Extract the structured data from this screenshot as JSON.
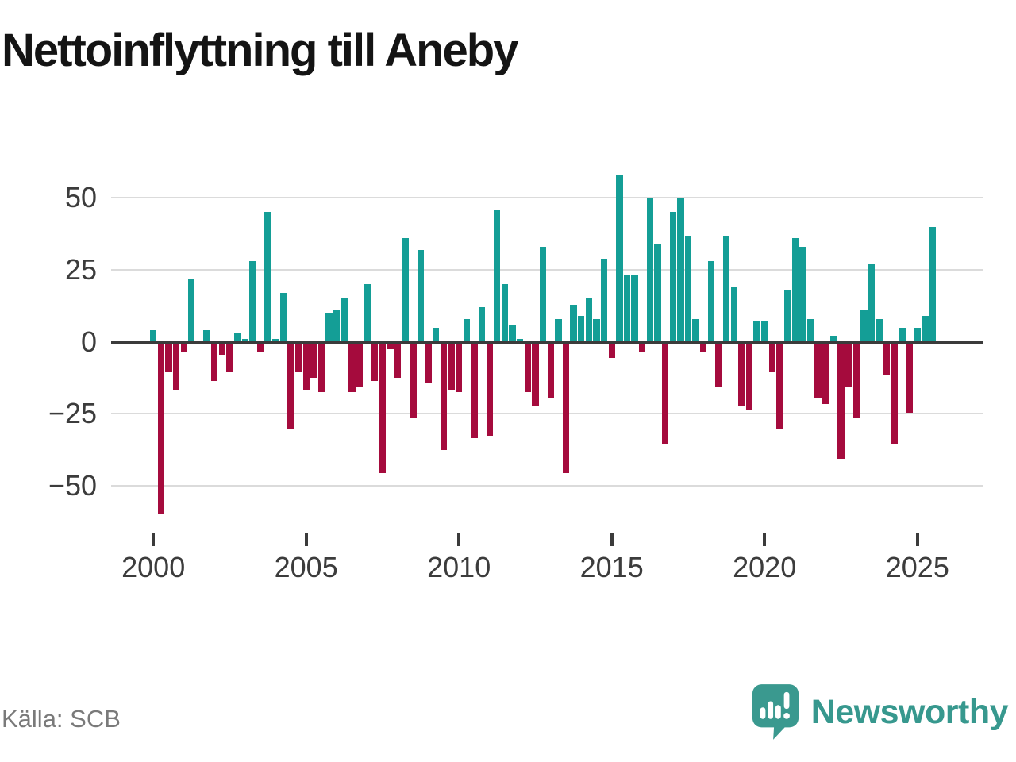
{
  "title": "Nettoinflyttning till Aneby",
  "source": "Källa: SCB",
  "brand": {
    "name": "Newsworthy"
  },
  "colors": {
    "positive": "#149e96",
    "negative": "#a50b3d",
    "grid": "#dbdbdb",
    "axis": "#3b3b3b",
    "brand_teal": "#37988e",
    "title_text": "#141414",
    "source_text": "#7a7a7a"
  },
  "chart_data": {
    "type": "bar",
    "title": "Nettoinflyttning till Aneby",
    "xlabel": "",
    "ylabel": "",
    "grid": "horizontal",
    "legend": "none",
    "ylim": [
      -62,
      62
    ],
    "y_ticks": [
      {
        "v": 50,
        "label": "50"
      },
      {
        "v": 25,
        "label": "25"
      },
      {
        "v": 0,
        "label": "0"
      },
      {
        "v": -25,
        "label": "−25"
      },
      {
        "v": -50,
        "label": "−50"
      }
    ],
    "x_ticks": [
      {
        "label": "2000",
        "quarter_index": 0
      },
      {
        "label": "2005",
        "quarter_index": 20
      },
      {
        "label": "2010",
        "quarter_index": 40
      },
      {
        "label": "2015",
        "quarter_index": 60
      },
      {
        "label": "2020",
        "quarter_index": 80
      },
      {
        "label": "2025",
        "quarter_index": 100
      }
    ],
    "categories": [
      "2000-Q1",
      "2000-Q2",
      "2000-Q3",
      "2000-Q4",
      "2001-Q1",
      "2001-Q2",
      "2001-Q3",
      "2001-Q4",
      "2002-Q1",
      "2002-Q2",
      "2002-Q3",
      "2002-Q4",
      "2003-Q1",
      "2003-Q2",
      "2003-Q3",
      "2003-Q4",
      "2004-Q1",
      "2004-Q2",
      "2004-Q3",
      "2004-Q4",
      "2005-Q1",
      "2005-Q2",
      "2005-Q3",
      "2005-Q4",
      "2006-Q1",
      "2006-Q2",
      "2006-Q3",
      "2006-Q4",
      "2007-Q1",
      "2007-Q2",
      "2007-Q3",
      "2007-Q4",
      "2008-Q1",
      "2008-Q2",
      "2008-Q3",
      "2008-Q4",
      "2009-Q1",
      "2009-Q2",
      "2009-Q3",
      "2009-Q4",
      "2010-Q1",
      "2010-Q2",
      "2010-Q3",
      "2010-Q4",
      "2011-Q1",
      "2011-Q2",
      "2011-Q3",
      "2011-Q4",
      "2012-Q1",
      "2012-Q2",
      "2012-Q3",
      "2012-Q4",
      "2013-Q1",
      "2013-Q2",
      "2013-Q3",
      "2013-Q4",
      "2014-Q1",
      "2014-Q2",
      "2014-Q3",
      "2014-Q4",
      "2015-Q1",
      "2015-Q2",
      "2015-Q3",
      "2015-Q4",
      "2016-Q1",
      "2016-Q2",
      "2016-Q3",
      "2016-Q4",
      "2017-Q1",
      "2017-Q2",
      "2017-Q3",
      "2017-Q4",
      "2018-Q1",
      "2018-Q2",
      "2018-Q3",
      "2018-Q4",
      "2019-Q1",
      "2019-Q2",
      "2019-Q3",
      "2019-Q4",
      "2020-Q1",
      "2020-Q2",
      "2020-Q3",
      "2020-Q4",
      "2021-Q1",
      "2021-Q2",
      "2021-Q3",
      "2021-Q4",
      "2022-Q1",
      "2022-Q2",
      "2022-Q3",
      "2022-Q4",
      "2023-Q1",
      "2023-Q2",
      "2023-Q3",
      "2023-Q4",
      "2024-Q1",
      "2024-Q2",
      "2024-Q3",
      "2024-Q4",
      "2025-Q1",
      "2025-Q2",
      "2025-Q3"
    ],
    "values": [
      4,
      -59,
      -10,
      -16,
      -3,
      22,
      0,
      4,
      -13,
      -4,
      -10,
      3,
      1,
      28,
      -3,
      45,
      1,
      17,
      -30,
      -10,
      -16,
      -12,
      -17,
      10,
      11,
      15,
      -17,
      -15,
      20,
      -13,
      -45,
      -2,
      -12,
      36,
      -26,
      32,
      -14,
      5,
      -37,
      -16,
      -17,
      8,
      -33,
      12,
      -32,
      46,
      20,
      6,
      1,
      -17,
      -22,
      33,
      -19,
      8,
      -45,
      13,
      9,
      15,
      8,
      29,
      -5,
      58,
      23,
      23,
      -3,
      50,
      34,
      -35,
      45,
      50,
      37,
      8,
      -3,
      28,
      -15,
      37,
      19,
      -22,
      -23,
      7,
      7,
      -10,
      -30,
      18,
      36,
      33,
      8,
      -19,
      -21,
      2,
      -40,
      -15,
      -26,
      11,
      27,
      8,
      -11,
      -35,
      5,
      -24,
      5,
      9,
      40
    ]
  }
}
